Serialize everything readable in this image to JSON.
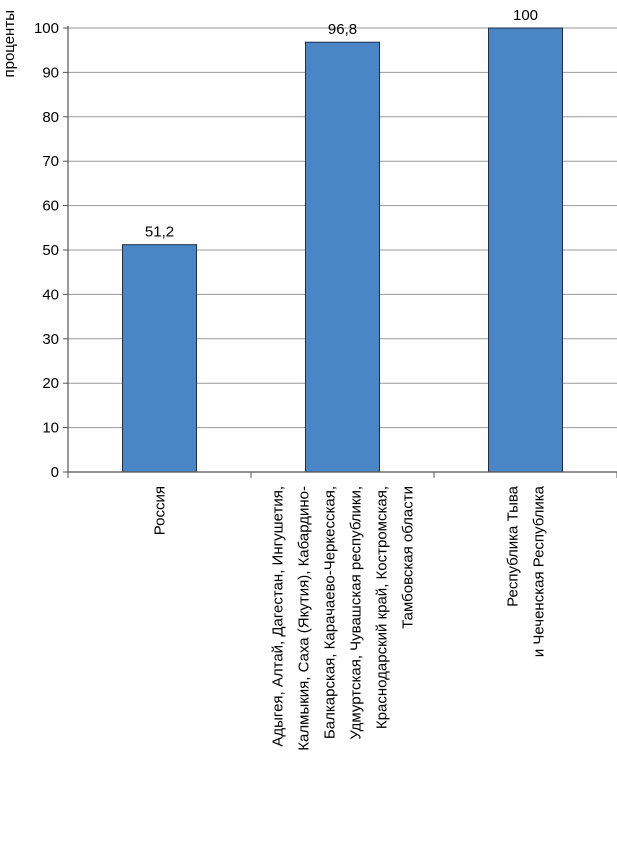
{
  "chart_data": {
    "type": "bar",
    "ylabel": "проценты",
    "ylim": [
      0,
      100
    ],
    "yticks": [
      0,
      10,
      20,
      30,
      40,
      50,
      60,
      70,
      80,
      90,
      100
    ],
    "grid": true,
    "categories": [
      [
        "Россия"
      ],
      [
        "Адыгея, Алтай, Дагестан, Ингушетия,",
        "Калмыкия, Саха (Якутия), Кабардино-",
        "Балкарская, Карачаево-Черкесская,",
        "Удмуртская, Чувашская республики,",
        "Краснодарский край, Костромская,",
        "Тамбовская области"
      ],
      [
        "Республика Тыва",
        "и Чеченская Республика"
      ]
    ],
    "values": [
      51.2,
      96.8,
      100
    ],
    "data_labels": [
      "51,2",
      "96,8",
      "100"
    ],
    "colors": {
      "bar_fill": "#4a86c5",
      "bar_stroke": "#1f2f45",
      "grid": "#9a9a9a",
      "axis": "#555555"
    }
  }
}
